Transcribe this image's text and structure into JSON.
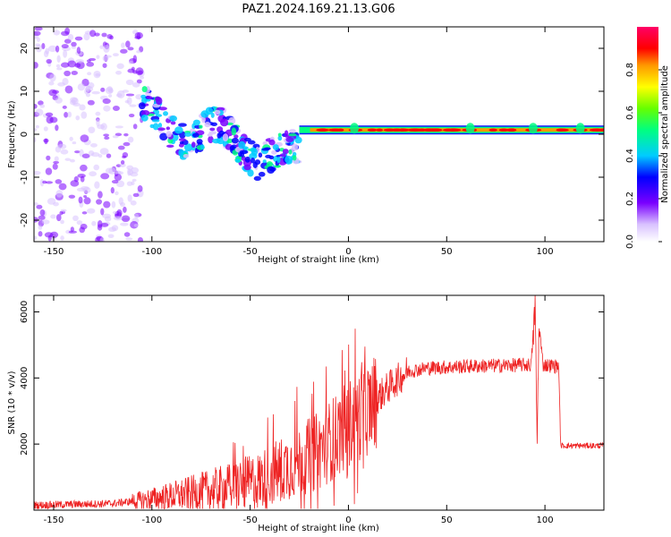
{
  "figure": {
    "title": "PAZ1.2024.169.21.13.G06"
  },
  "chart_data": [
    {
      "type": "heatmap",
      "name": "spectrogram",
      "xlabel": "Height of straight line (km)",
      "ylabel": "Frequency (Hz)",
      "xlim": [
        -160,
        130
      ],
      "ylim": [
        -25,
        25
      ],
      "xticks": [
        -150,
        -100,
        -50,
        0,
        50,
        100
      ],
      "yticks": [
        -20,
        -10,
        0,
        10,
        20
      ],
      "colorbar": {
        "label": "Normalized spectral amplitude",
        "range": [
          0.0,
          1.0
        ],
        "ticks": [
          "0.0",
          "0.2",
          "0.4",
          "0.6",
          "0.8"
        ],
        "colors": [
          "#ffffff",
          "#d9c2ff",
          "#7a00ff",
          "#0000ff",
          "#00ccff",
          "#00ff80",
          "#66ff00",
          "#ffff00",
          "#ff9900",
          "#ff0000",
          "#ff0066"
        ]
      },
      "features": [
        {
          "x_range": [
            -160,
            -105
          ],
          "freq_range": [
            -25,
            25
          ],
          "amplitude": 0.1,
          "description_level": "diffuse low noise"
        },
        {
          "x_range": [
            -105,
            -25
          ],
          "freq_range": [
            -10,
            7
          ],
          "amplitude": 0.3,
          "description_level": "scattered signal"
        },
        {
          "x_range": [
            -25,
            130
          ],
          "freq_center": 1,
          "amplitude": 0.95,
          "description_level": "strong narrow tone"
        }
      ]
    },
    {
      "type": "line",
      "name": "snr",
      "xlabel": "Height of straight line (km)",
      "ylabel": "SNR (10 * v/v)",
      "xlim": [
        -160,
        130
      ],
      "ylim": [
        0,
        6500
      ],
      "xticks": [
        -150,
        -100,
        -50,
        0,
        50,
        100
      ],
      "yticks": [
        2000,
        4000,
        6000
      ],
      "color": "#ee2222",
      "grid": false,
      "anchors": {
        "x": [
          -160,
          -120,
          -105,
          -80,
          -60,
          -45,
          -35,
          -25,
          -15,
          0,
          10,
          20,
          30,
          40,
          60,
          80,
          93,
          95,
          96,
          97,
          99,
          107,
          108,
          115,
          130
        ],
        "y": [
          150,
          200,
          300,
          500,
          700,
          900,
          1200,
          1500,
          1800,
          2600,
          3100,
          3700,
          4200,
          4300,
          4350,
          4380,
          4400,
          6200,
          2000,
          5600,
          4400,
          4350,
          1950,
          1950,
          1950
        ]
      }
    }
  ]
}
